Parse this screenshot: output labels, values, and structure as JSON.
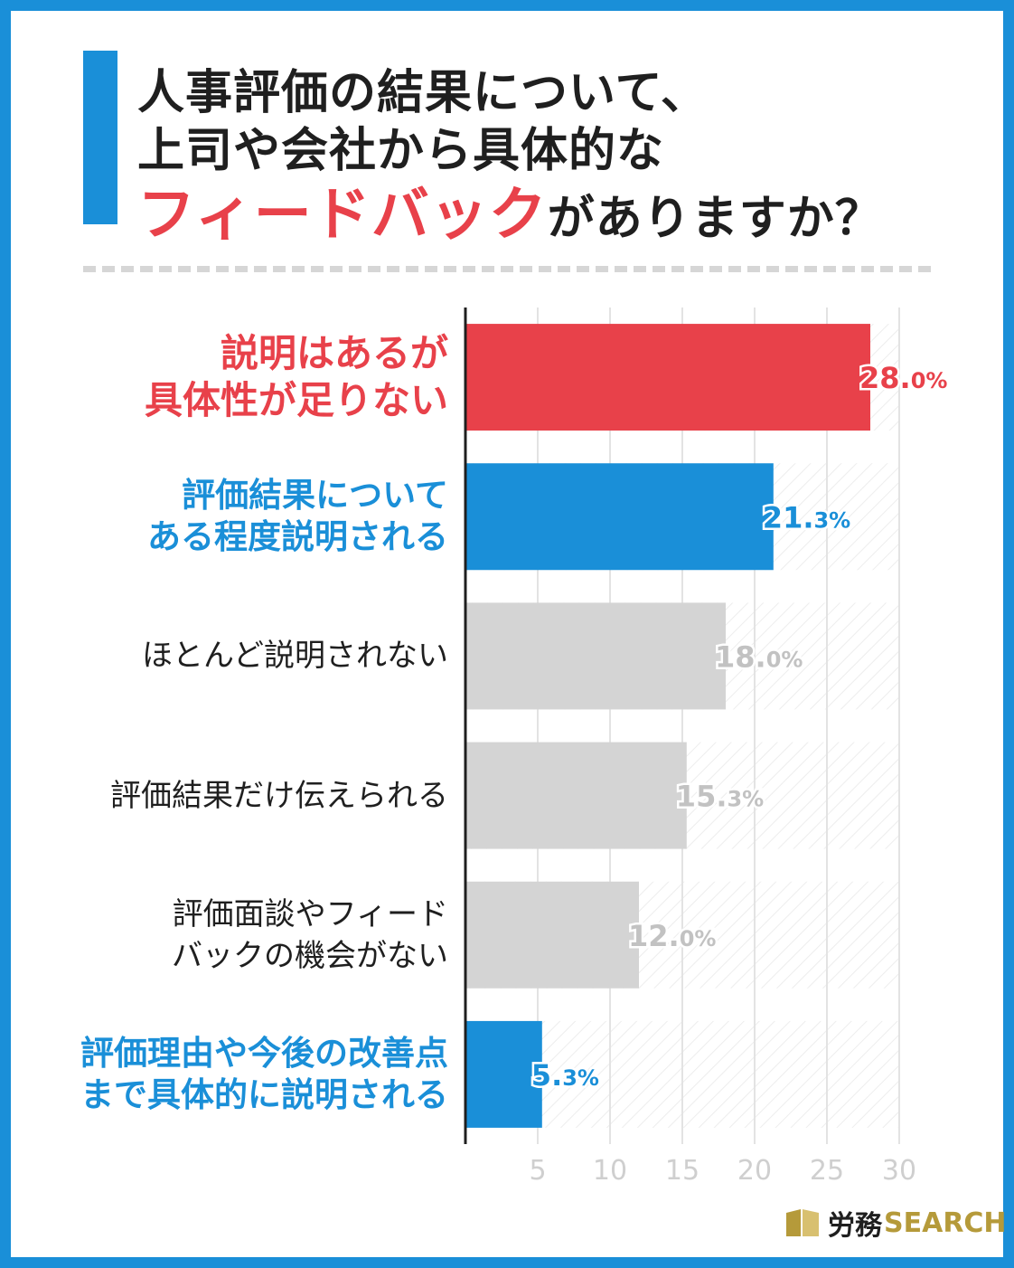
{
  "title": {
    "line1": "人事評価の結果について、",
    "line2": "上司や会社から具体的な",
    "line3_highlight": "フィードバック",
    "line3_rest": "がありますか？"
  },
  "colors": {
    "frame": "#1a8fd8",
    "red": "#e8414a",
    "blue": "#1a8fd8",
    "gray_bar": "#d4d4d4",
    "gray_label": "#1f1f1f",
    "gray_value": "#c2c2c2",
    "logo_gold": "#b59a3a"
  },
  "chart_data": {
    "type": "bar",
    "orientation": "horizontal",
    "categories": [
      [
        "説明はあるが",
        "具体性が足りない"
      ],
      [
        "評価結果について",
        "ある程度説明される"
      ],
      [
        "ほとんど説明されない"
      ],
      [
        "評価結果だけ伝えられる"
      ],
      [
        "評価面談やフィード",
        "バックの機会がない"
      ],
      [
        "評価理由や今後の改善点",
        "まで具体的に説明される"
      ]
    ],
    "values": [
      28.0,
      21.3,
      18.0,
      15.3,
      12.0,
      5.3
    ],
    "value_labels_int": [
      "28.",
      "21.",
      "18.",
      "15.",
      "12.",
      "5."
    ],
    "value_labels_dec": [
      "0%",
      "3%",
      "0%",
      "3%",
      "0%",
      "3%"
    ],
    "highlight": [
      "red",
      "blue",
      "gray",
      "gray",
      "gray",
      "blue"
    ],
    "xticks": [
      "5",
      "10",
      "15",
      "20",
      "25",
      "30"
    ],
    "xlim": [
      0,
      30
    ],
    "grid": true
  },
  "logo": {
    "text_ja": "労務",
    "text_en": "SEARCH"
  }
}
